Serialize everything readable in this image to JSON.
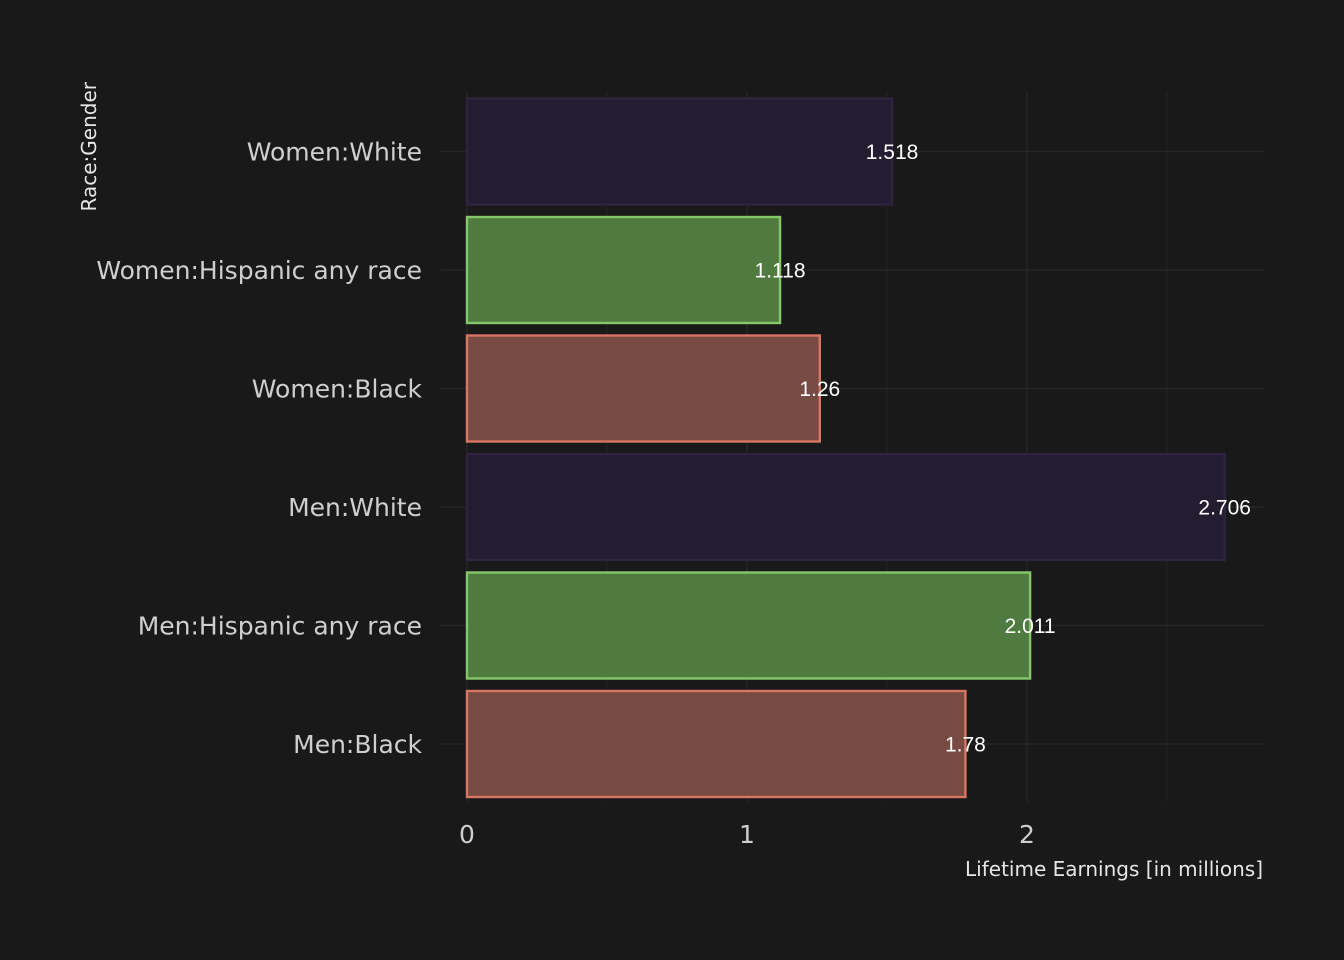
{
  "chart_data": {
    "type": "bar",
    "orientation": "horizontal",
    "categories": [
      "Men:Black",
      "Men:Hispanic any race",
      "Men:White",
      "Women:Black",
      "Women:Hispanic any race",
      "Women:White"
    ],
    "values": [
      1.78,
      2.011,
      2.706,
      1.26,
      1.118,
      1.518
    ],
    "value_labels": [
      "1.78",
      "2.011",
      "2.706",
      "1.26",
      "1.118",
      "1.518"
    ],
    "xlabel": "Lifetime Earnings [in millions]",
    "ylabel": "Race:Gender",
    "xlim": [
      0,
      2.85
    ],
    "xticks": [
      0,
      1,
      2
    ],
    "xtick_labels": [
      "0",
      "1",
      "2"
    ],
    "grid": true,
    "legend": "none",
    "bar_fill_colors": [
      "#774a42",
      "#4f7a40",
      "#241c31",
      "#774a42",
      "#4f7a40",
      "#241c31"
    ],
    "bar_stroke_colors": [
      "#d97563",
      "#86c76a",
      "#2e2440",
      "#d97563",
      "#86c76a",
      "#2e2440"
    ],
    "colors": {
      "background": "#191919",
      "grid": "#262626",
      "text": "#cfcfcf",
      "value_text": "#ffffff"
    }
  }
}
